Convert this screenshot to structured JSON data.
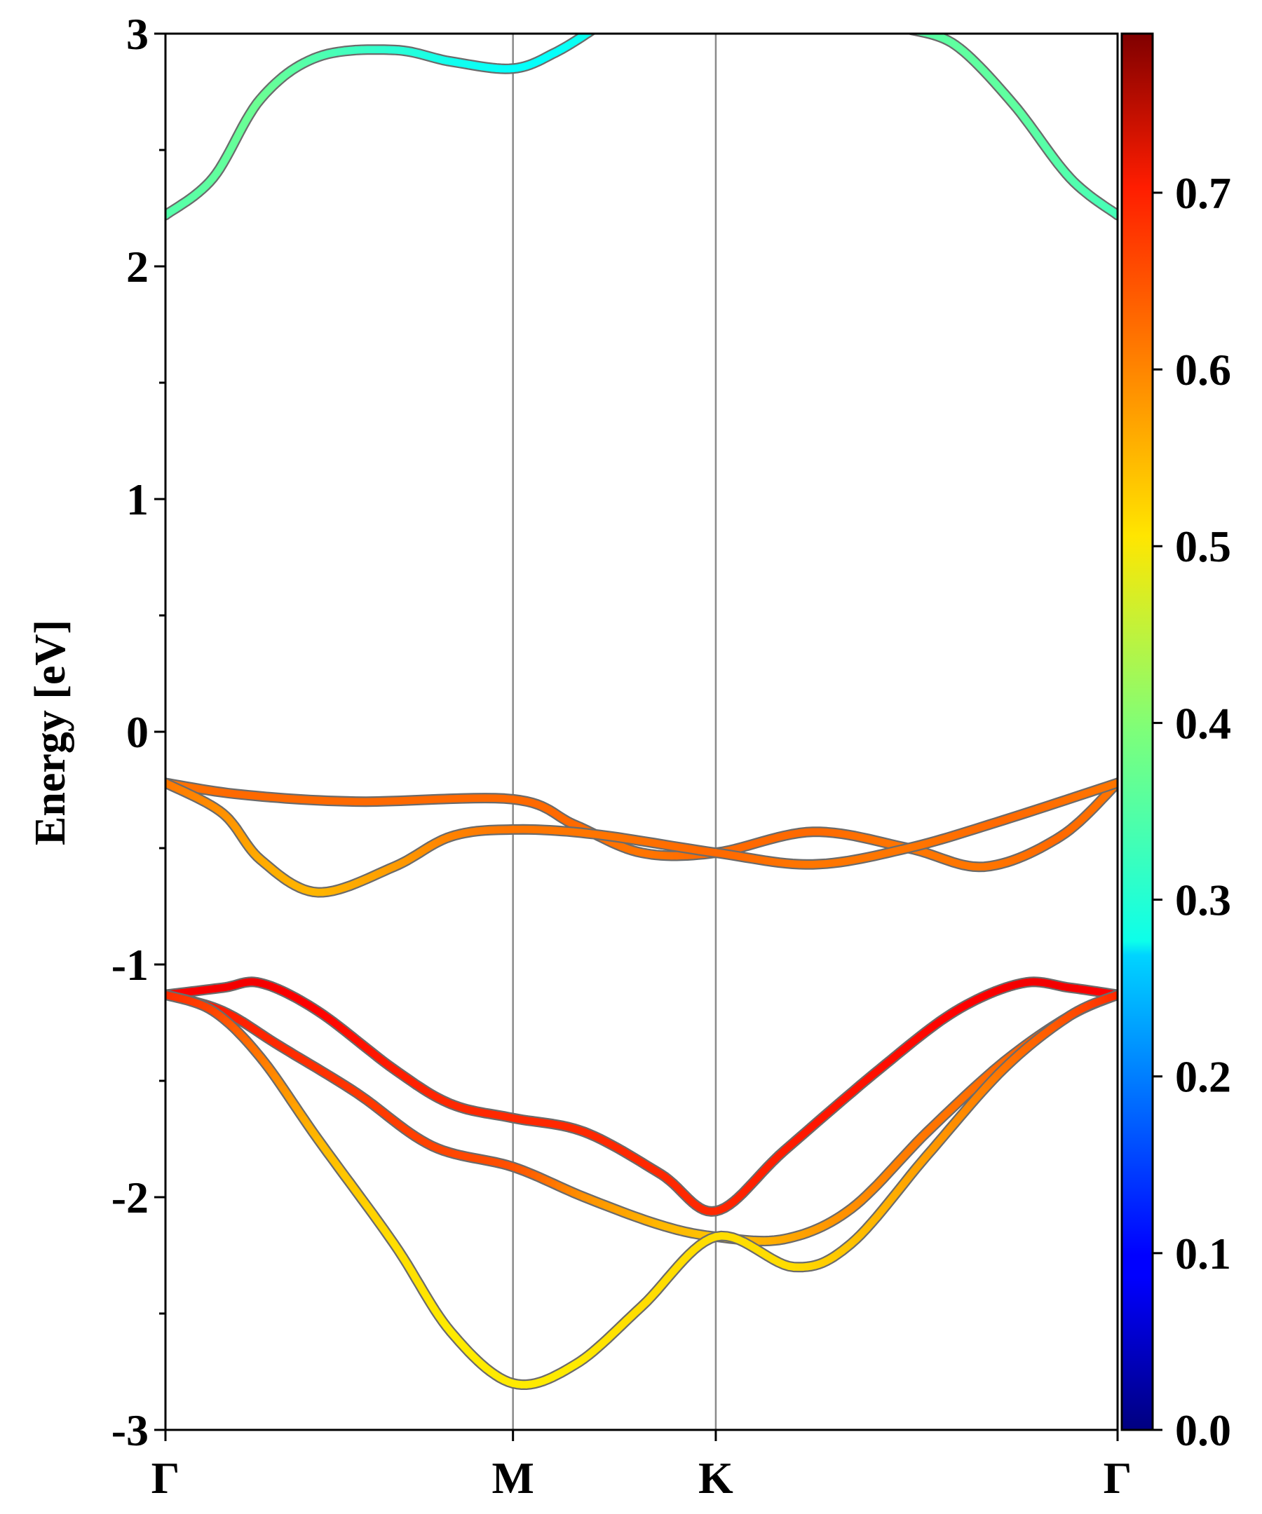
{
  "chart_data": {
    "type": "line",
    "title": "",
    "xlabel": "",
    "ylabel": "Energy [eV]",
    "ylim": [
      -3,
      3
    ],
    "yticks": [
      "-3",
      "-2",
      "-1",
      "0",
      "1",
      "2",
      "3"
    ],
    "x_high_symmetry": [
      {
        "label": "Γ",
        "x": 0.0
      },
      {
        "label": "M",
        "x": 0.365
      },
      {
        "label": "K",
        "x": 0.578
      },
      {
        "label": "Γ",
        "x": 1.0
      }
    ],
    "colorbar": {
      "range": [
        0.0,
        0.79
      ],
      "ticks": [
        "0.0",
        "0.1",
        "0.2",
        "0.3",
        "0.4",
        "0.5",
        "0.6",
        "0.7"
      ],
      "colormap": "jet"
    },
    "series": [
      {
        "points": [
          [
            0.0,
            2.22,
            0.36
          ],
          [
            0.05,
            2.38,
            0.37
          ],
          [
            0.1,
            2.72,
            0.38
          ],
          [
            0.16,
            2.9,
            0.36
          ],
          [
            0.24,
            2.93,
            0.33
          ],
          [
            0.3,
            2.88,
            0.31
          ],
          [
            0.365,
            2.85,
            0.3
          ],
          [
            0.41,
            2.92,
            0.3
          ],
          [
            0.45,
            3.02,
            0.31
          ]
        ]
      },
      {
        "points": [
          [
            0.78,
            3.02,
            0.36
          ],
          [
            0.83,
            2.95,
            0.37
          ],
          [
            0.89,
            2.7,
            0.37
          ],
          [
            0.95,
            2.38,
            0.36
          ],
          [
            1.0,
            2.22,
            0.35
          ]
        ]
      },
      {
        "points": [
          [
            0.0,
            -0.22,
            0.6
          ],
          [
            0.08,
            -0.27,
            0.61
          ],
          [
            0.2,
            -0.3,
            0.61
          ],
          [
            0.365,
            -0.29,
            0.61
          ],
          [
            0.43,
            -0.4,
            0.61
          ],
          [
            0.5,
            -0.52,
            0.6
          ],
          [
            0.578,
            -0.52,
            0.61
          ],
          [
            0.68,
            -0.43,
            0.61
          ],
          [
            0.78,
            -0.5,
            0.6
          ],
          [
            0.86,
            -0.58,
            0.6
          ],
          [
            0.94,
            -0.45,
            0.61
          ],
          [
            1.0,
            -0.22,
            0.6
          ]
        ]
      },
      {
        "points": [
          [
            0.0,
            -0.22,
            0.6
          ],
          [
            0.06,
            -0.35,
            0.58
          ],
          [
            0.1,
            -0.55,
            0.56
          ],
          [
            0.16,
            -0.69,
            0.55
          ],
          [
            0.24,
            -0.58,
            0.57
          ],
          [
            0.3,
            -0.45,
            0.59
          ],
          [
            0.365,
            -0.42,
            0.6
          ],
          [
            0.45,
            -0.44,
            0.6
          ],
          [
            0.578,
            -0.52,
            0.61
          ],
          [
            0.68,
            -0.57,
            0.6
          ],
          [
            0.78,
            -0.5,
            0.6
          ],
          [
            0.88,
            -0.38,
            0.61
          ],
          [
            1.0,
            -0.22,
            0.6
          ]
        ]
      },
      {
        "points": [
          [
            0.0,
            -1.13,
            0.69
          ],
          [
            0.06,
            -1.1,
            0.7
          ],
          [
            0.1,
            -1.08,
            0.7
          ],
          [
            0.16,
            -1.2,
            0.69
          ],
          [
            0.24,
            -1.45,
            0.67
          ],
          [
            0.3,
            -1.6,
            0.66
          ],
          [
            0.365,
            -1.66,
            0.66
          ],
          [
            0.44,
            -1.72,
            0.66
          ],
          [
            0.52,
            -1.9,
            0.66
          ],
          [
            0.578,
            -2.06,
            0.66
          ],
          [
            0.65,
            -1.8,
            0.67
          ],
          [
            0.75,
            -1.45,
            0.68
          ],
          [
            0.83,
            -1.2,
            0.69
          ],
          [
            0.9,
            -1.08,
            0.7
          ],
          [
            0.95,
            -1.1,
            0.7
          ],
          [
            1.0,
            -1.13,
            0.69
          ]
        ]
      },
      {
        "points": [
          [
            0.0,
            -1.13,
            0.68
          ],
          [
            0.06,
            -1.2,
            0.67
          ],
          [
            0.12,
            -1.35,
            0.66
          ],
          [
            0.2,
            -1.55,
            0.65
          ],
          [
            0.28,
            -1.78,
            0.64
          ],
          [
            0.365,
            -1.87,
            0.63
          ],
          [
            0.44,
            -2.0,
            0.58
          ],
          [
            0.52,
            -2.12,
            0.55
          ],
          [
            0.578,
            -2.17,
            0.54
          ],
          [
            0.65,
            -2.18,
            0.56
          ],
          [
            0.72,
            -2.05,
            0.58
          ],
          [
            0.8,
            -1.72,
            0.6
          ],
          [
            0.88,
            -1.42,
            0.61
          ],
          [
            0.95,
            -1.22,
            0.63
          ],
          [
            1.0,
            -1.13,
            0.66
          ]
        ]
      },
      {
        "points": [
          [
            0.0,
            -1.13,
            0.66
          ],
          [
            0.05,
            -1.2,
            0.64
          ],
          [
            0.1,
            -1.4,
            0.6
          ],
          [
            0.16,
            -1.75,
            0.55
          ],
          [
            0.24,
            -2.2,
            0.52
          ],
          [
            0.3,
            -2.58,
            0.51
          ],
          [
            0.365,
            -2.8,
            0.51
          ],
          [
            0.43,
            -2.72,
            0.51
          ],
          [
            0.5,
            -2.47,
            0.52
          ],
          [
            0.578,
            -2.17,
            0.52
          ],
          [
            0.66,
            -2.3,
            0.52
          ],
          [
            0.72,
            -2.2,
            0.54
          ],
          [
            0.8,
            -1.82,
            0.57
          ],
          [
            0.88,
            -1.45,
            0.6
          ],
          [
            0.95,
            -1.22,
            0.63
          ],
          [
            1.0,
            -1.13,
            0.66
          ]
        ]
      }
    ]
  }
}
